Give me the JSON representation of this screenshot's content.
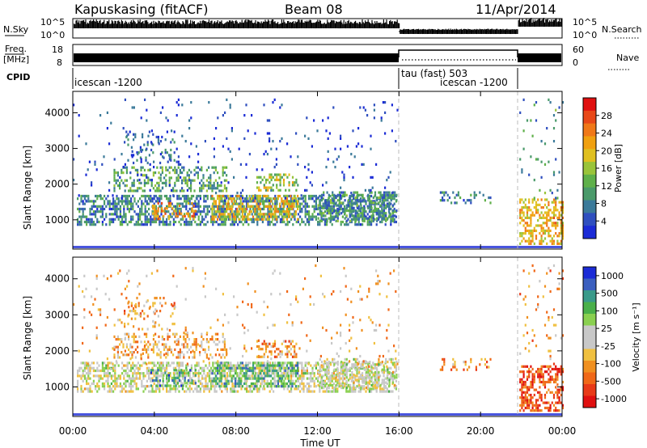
{
  "header": {
    "station": "Kapuskasing (fitACF)",
    "beam": "Beam 08",
    "date": "11/Apr/2014"
  },
  "strip": {
    "nsky_label": "N.Sky",
    "nsky_ticks": [
      "10^5",
      "10^0"
    ],
    "nsearch_label": "N.Search",
    "nsearch_ticks": [
      "10^5",
      "10^0"
    ],
    "freq_label": "Freq.",
    "freq_unit": "[MHz]",
    "freq_ticks": [
      "18",
      "8"
    ],
    "nave_label": "Nave",
    "nave_ticks": [
      "60",
      "0"
    ],
    "cpid_label": "CPID",
    "cpid_segments": [
      {
        "text": "icescan -1200",
        "start_h": 0,
        "end_h": 16
      },
      {
        "text": "tau (fast) 503",
        "start_h": 16,
        "end_h": 22
      },
      {
        "text": "icescan -1200",
        "start_h": 16,
        "end_h": 22
      }
    ]
  },
  "axes": {
    "xlabel": "Time UT",
    "x_ticks": [
      "00:00",
      "04:00",
      "08:00",
      "12:00",
      "16:00",
      "20:00",
      "00:00"
    ],
    "ylabel": "Slant Range [km]",
    "y_ticks": [
      "1000",
      "2000",
      "3000",
      "4000"
    ]
  },
  "colorbars": {
    "power": {
      "label": "Power [dB]",
      "ticks": [
        "4",
        "8",
        "12",
        "16",
        "20",
        "24",
        "28"
      ],
      "colors": [
        "#1b2bd6",
        "#2f4fbf",
        "#3b7a9a",
        "#4a9a6a",
        "#5fb04a",
        "#9ac43a",
        "#e0c020",
        "#f0a010",
        "#f07818",
        "#e84818",
        "#e01010"
      ]
    },
    "velocity": {
      "label": "Velocity [m s⁻¹]",
      "ticks": [
        "1000",
        "500",
        "100",
        "25",
        "-25",
        "-100",
        "-500",
        "-1000"
      ],
      "colors": [
        "#1b2bd6",
        "#3b5fbf",
        "#3a9a8a",
        "#4ab04a",
        "#8ad050",
        "#c8c8c8",
        "#c8c8c8",
        "#f0c040",
        "#f09020",
        "#f06818",
        "#e83a18",
        "#e01010"
      ]
    }
  },
  "chart_data": [
    {
      "type": "heatmap",
      "name": "Power [dB]",
      "x_range_hours": [
        0,
        24
      ],
      "y_range_km": [
        180,
        4600
      ],
      "clusters": [
        {
          "t": [
            0.2,
            15.9
          ],
          "r": [
            900,
            1700
          ],
          "level": 0.25,
          "density": 0.55
        },
        {
          "t": [
            2.0,
            7.5
          ],
          "r": [
            1800,
            2500
          ],
          "level": 0.35,
          "density": 0.35
        },
        {
          "t": [
            2.5,
            5.0
          ],
          "r": [
            2600,
            3500
          ],
          "level": 0.2,
          "density": 0.15
        },
        {
          "t": [
            6.8,
            11.0
          ],
          "r": [
            1000,
            1700
          ],
          "level": 0.6,
          "density": 0.55
        },
        {
          "t": [
            9.0,
            11.0
          ],
          "r": [
            1800,
            2300
          ],
          "level": 0.5,
          "density": 0.4
        },
        {
          "t": [
            3.8,
            6.0
          ],
          "r": [
            1000,
            1500
          ],
          "level": 0.7,
          "density": 0.35
        },
        {
          "t": [
            12.0,
            15.9
          ],
          "r": [
            1000,
            1800
          ],
          "level": 0.3,
          "density": 0.45
        },
        {
          "t": [
            0.0,
            15.9
          ],
          "r": [
            1500,
            4400
          ],
          "level": 0.1,
          "density": 0.03
        },
        {
          "t": [
            18.0,
            20.5
          ],
          "r": [
            1500,
            1800
          ],
          "level": 0.25,
          "density": 0.25
        },
        {
          "t": [
            21.9,
            24.0
          ],
          "r": [
            350,
            1600
          ],
          "level": 0.65,
          "density": 0.5
        },
        {
          "t": [
            21.9,
            24.0
          ],
          "r": [
            1600,
            4400
          ],
          "level": 0.3,
          "density": 0.05
        }
      ]
    },
    {
      "type": "heatmap",
      "name": "Velocity [m s-1]",
      "x_range_hours": [
        0,
        24
      ],
      "y_range_km": [
        180,
        4600
      ],
      "clusters": [
        {
          "t": [
            0.2,
            15.9
          ],
          "r": [
            900,
            1700
          ],
          "level": 0.5,
          "density": 0.55
        },
        {
          "t": [
            2.0,
            7.5
          ],
          "r": [
            1800,
            2500
          ],
          "level": 0.65,
          "density": 0.35
        },
        {
          "t": [
            2.5,
            5.0
          ],
          "r": [
            2600,
            3500
          ],
          "level": 0.7,
          "density": 0.15
        },
        {
          "t": [
            6.8,
            11.0
          ],
          "r": [
            1000,
            1700
          ],
          "level": 0.3,
          "density": 0.55
        },
        {
          "t": [
            9.0,
            11.0
          ],
          "r": [
            1800,
            2300
          ],
          "level": 0.72,
          "density": 0.4
        },
        {
          "t": [
            3.8,
            6.0
          ],
          "r": [
            1000,
            1500
          ],
          "level": 0.25,
          "density": 0.35
        },
        {
          "t": [
            12.0,
            15.9
          ],
          "r": [
            1000,
            1800
          ],
          "level": 0.5,
          "density": 0.45
        },
        {
          "t": [
            0.0,
            15.9
          ],
          "r": [
            1500,
            4400
          ],
          "level": 0.65,
          "density": 0.03
        },
        {
          "t": [
            18.0,
            20.5
          ],
          "r": [
            1500,
            1800
          ],
          "level": 0.7,
          "density": 0.25
        },
        {
          "t": [
            21.9,
            24.0
          ],
          "r": [
            350,
            1600
          ],
          "level": 0.85,
          "density": 0.5
        },
        {
          "t": [
            21.9,
            24.0
          ],
          "r": [
            1600,
            4400
          ],
          "level": 0.7,
          "density": 0.05
        }
      ]
    }
  ]
}
